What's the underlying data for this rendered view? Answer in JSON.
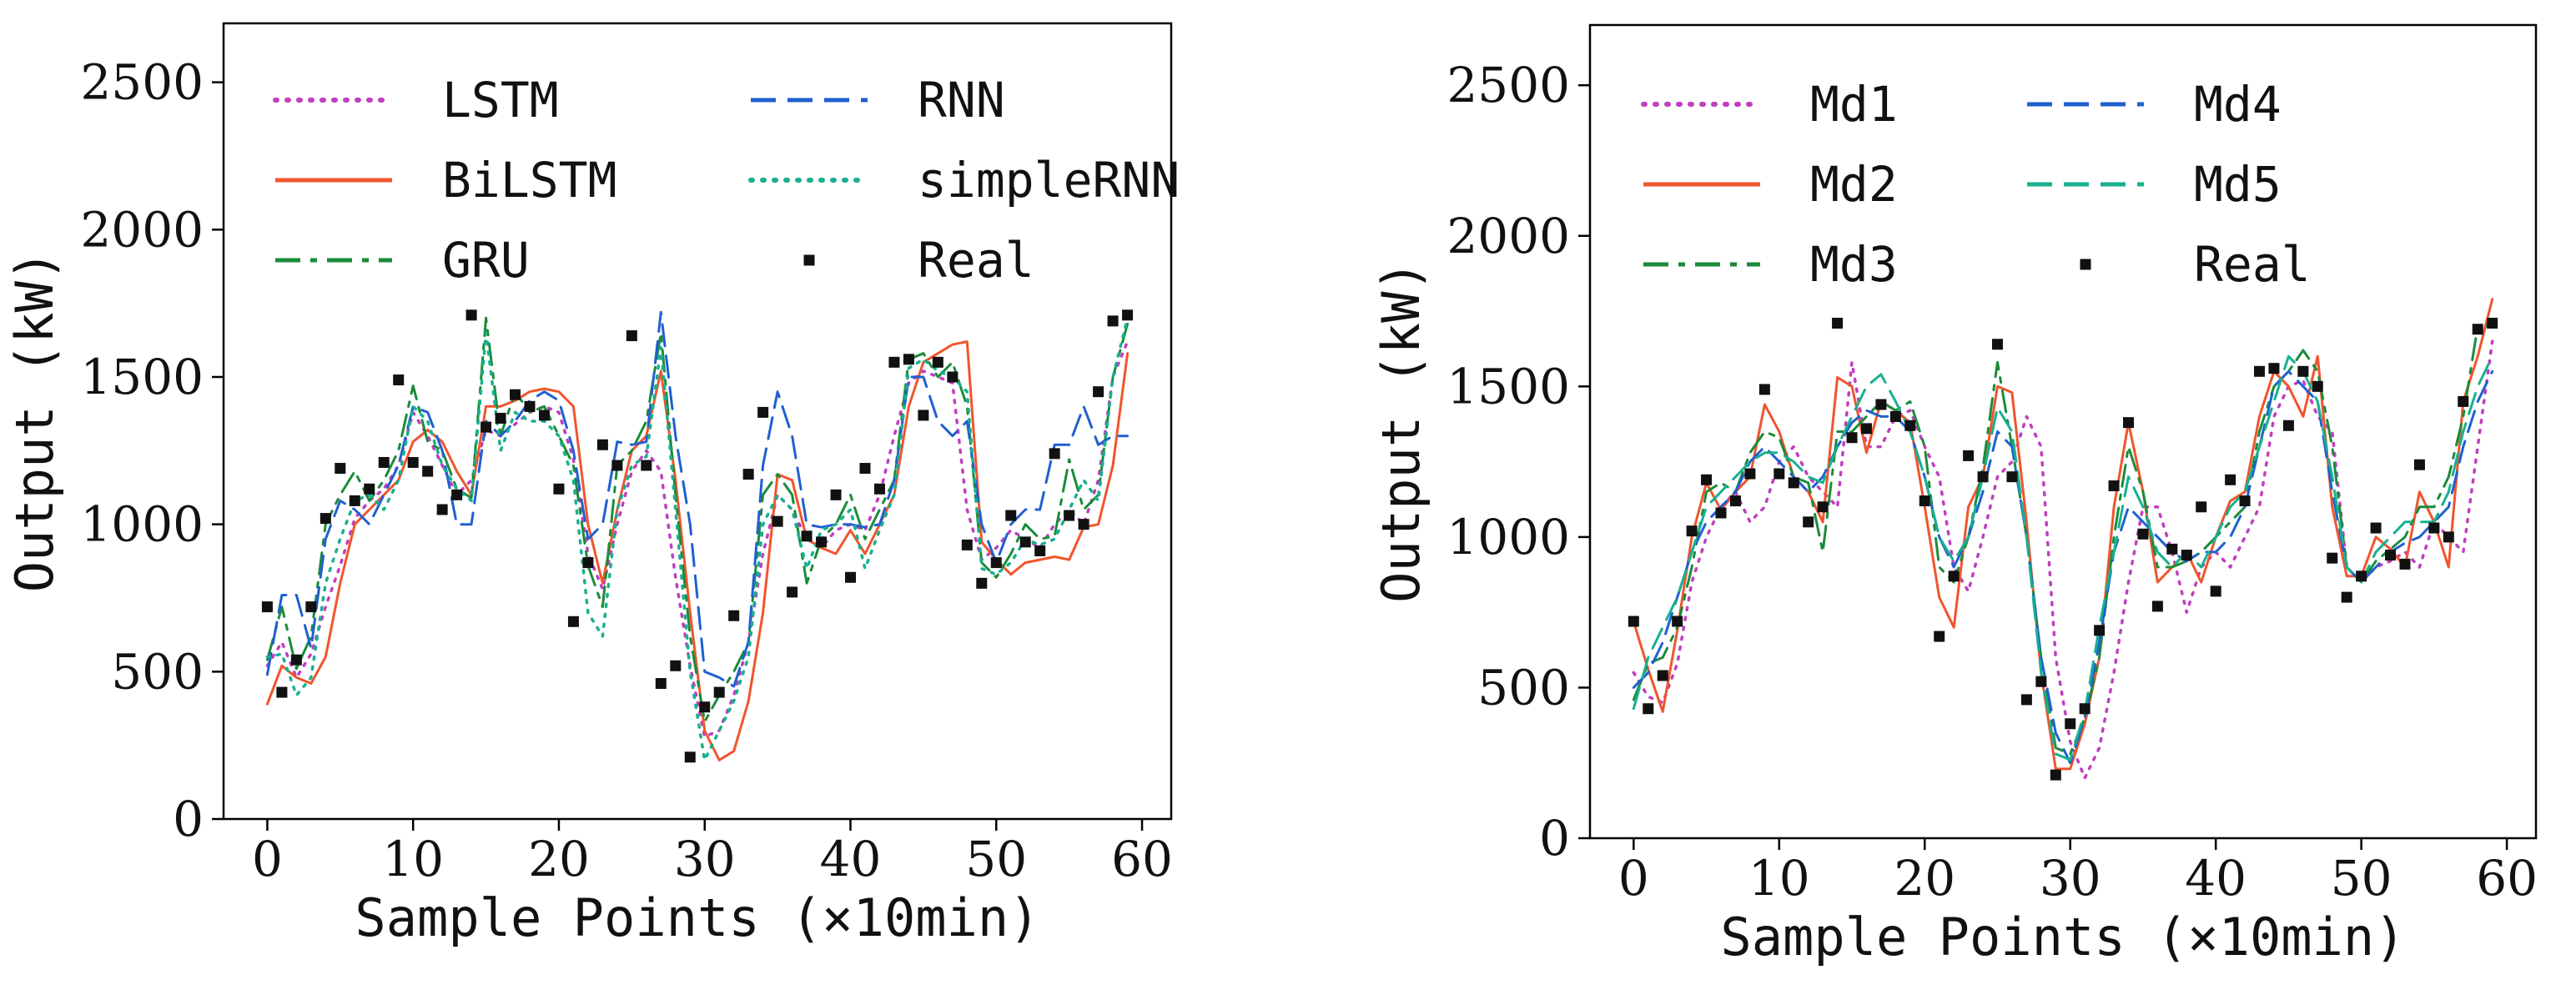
{
  "chart_data": [
    {
      "type": "line",
      "xlabel": "Sample Points (×10min)",
      "ylabel": "Output (kW)",
      "xlim": [
        -3,
        62
      ],
      "ylim": [
        0,
        2700
      ],
      "xticks": [
        0,
        10,
        20,
        30,
        40,
        50,
        60
      ],
      "yticks": [
        0,
        500,
        1000,
        1500,
        2000,
        2500
      ],
      "legend_position": "top",
      "legend_columns": 2,
      "grid": false,
      "series": [
        {
          "name": "LSTM",
          "color": "#bf3fbf",
          "style": "dotted",
          "values": [
            520,
            600,
            480,
            560,
            720,
            860,
            1020,
            1080,
            1120,
            1200,
            1380,
            1300,
            1200,
            1100,
            1150,
            1320,
            1300,
            1340,
            1380,
            1400,
            1380,
            1220,
            900,
            780,
            1000,
            1180,
            1250,
            1180,
            820,
            520,
            280,
            300,
            420,
            600,
            900,
            1100,
            1050,
            950,
            920,
            980,
            1000,
            980,
            1100,
            1300,
            1480,
            1520,
            1500,
            1480,
            1050,
            880,
            920,
            980,
            950,
            920,
            1000,
            1050,
            1000,
            1150,
            1500,
            1620
          ]
        },
        {
          "name": "BiLSTM",
          "color": "#f0552d",
          "style": "solid",
          "values": [
            390,
            520,
            480,
            460,
            550,
            800,
            1000,
            1050,
            1100,
            1150,
            1280,
            1320,
            1280,
            1180,
            1100,
            1400,
            1400,
            1420,
            1450,
            1460,
            1450,
            1400,
            1000,
            800,
            1050,
            1250,
            1300,
            1520,
            1150,
            700,
            300,
            200,
            230,
            400,
            700,
            1170,
            1150,
            950,
            920,
            900,
            980,
            900,
            1000,
            1100,
            1400,
            1550,
            1580,
            1610,
            1620,
            940,
            880,
            830,
            870,
            880,
            890,
            880,
            990,
            1000,
            1200,
            1580
          ]
        },
        {
          "name": "GRU",
          "color": "#1a8c3a",
          "style": "dashdot",
          "values": [
            540,
            720,
            510,
            620,
            1000,
            1100,
            1180,
            1080,
            1150,
            1250,
            1470,
            1280,
            1250,
            1120,
            1090,
            1700,
            1300,
            1450,
            1380,
            1400,
            1300,
            1200,
            860,
            720,
            1200,
            1250,
            1350,
            1650,
            1100,
            620,
            330,
            420,
            500,
            600,
            1100,
            1170,
            1100,
            800,
            950,
            1000,
            1100,
            950,
            1050,
            1150,
            1560,
            1580,
            1500,
            1550,
            1400,
            870,
            820,
            900,
            1000,
            950,
            960,
            1220,
            1050,
            1100,
            1500,
            1680
          ]
        },
        {
          "name": "RNN",
          "color": "#2060d0",
          "style": "dashed",
          "values": [
            490,
            760,
            760,
            580,
            950,
            1080,
            1050,
            1000,
            1100,
            1200,
            1400,
            1380,
            1250,
            1000,
            1000,
            1350,
            1300,
            1350,
            1420,
            1450,
            1420,
            1250,
            950,
            1000,
            1280,
            1270,
            1280,
            1720,
            1300,
            1000,
            500,
            480,
            450,
            600,
            1200,
            1450,
            1300,
            1000,
            990,
            1000,
            1000,
            990,
            1000,
            1150,
            1500,
            1500,
            1350,
            1300,
            1350,
            1000,
            870,
            1000,
            1050,
            1050,
            1270,
            1270,
            1400,
            1270,
            1300,
            1300
          ]
        },
        {
          "name": "simpleRNN",
          "color": "#18b090",
          "style": "dotted",
          "values": [
            550,
            560,
            420,
            480,
            800,
            950,
            1080,
            1100,
            1050,
            1150,
            1400,
            1350,
            1200,
            1120,
            1080,
            1650,
            1250,
            1380,
            1350,
            1350,
            1300,
            1150,
            700,
            620,
            1050,
            1200,
            1230,
            1600,
            1050,
            500,
            200,
            300,
            400,
            550,
            1000,
            1100,
            1050,
            850,
            980,
            1000,
            1050,
            850,
            980,
            1100,
            1530,
            1560,
            1520,
            1500,
            1450,
            850,
            830,
            870,
            950,
            930,
            950,
            1050,
            1150,
            1080,
            1500,
            1700
          ]
        },
        {
          "name": "Real",
          "color": "#111111",
          "style": "markers",
          "values": [
            720,
            430,
            540,
            720,
            1020,
            1190,
            1080,
            1120,
            1210,
            1490,
            1210,
            1180,
            1050,
            1100,
            1710,
            1330,
            1360,
            1440,
            1400,
            1370,
            1120,
            670,
            870,
            1270,
            1200,
            1640,
            1200,
            460,
            520,
            210,
            380,
            430,
            690,
            1170,
            1380,
            1010,
            770,
            960,
            940,
            1100,
            820,
            1190,
            1120,
            1550,
            1560,
            1370,
            1550,
            1500,
            930,
            800,
            870,
            1030,
            940,
            910,
            1240,
            1030,
            1000,
            1450,
            1690,
            1710
          ]
        }
      ]
    },
    {
      "type": "line",
      "xlabel": "Sample Points (×10min)",
      "ylabel": "Output (kW)",
      "xlim": [
        -3,
        62
      ],
      "ylim": [
        0,
        2700
      ],
      "xticks": [
        0,
        10,
        20,
        30,
        40,
        50,
        60
      ],
      "yticks": [
        0,
        500,
        1000,
        1500,
        2000,
        2500
      ],
      "legend_position": "top",
      "legend_columns": 2,
      "grid": false,
      "series": [
        {
          "name": "Md1",
          "color": "#bf3fbf",
          "style": "dotted",
          "values": [
            550,
            470,
            450,
            580,
            850,
            1000,
            1100,
            1150,
            1050,
            1100,
            1250,
            1300,
            1200,
            1150,
            1100,
            1580,
            1300,
            1300,
            1400,
            1420,
            1300,
            1200,
            900,
            820,
            1000,
            1200,
            1250,
            1400,
            1300,
            600,
            320,
            200,
            300,
            550,
            850,
            1100,
            1100,
            950,
            750,
            900,
            950,
            900,
            1000,
            1100,
            1400,
            1500,
            1520,
            1400,
            1350,
            900,
            850,
            900,
            920,
            950,
            900,
            1050,
            1000,
            950,
            1300,
            1650
          ]
        },
        {
          "name": "Md2",
          "color": "#f0552d",
          "style": "solid",
          "values": [
            720,
            560,
            420,
            690,
            1000,
            1180,
            1090,
            1150,
            1200,
            1440,
            1350,
            1200,
            1150,
            1050,
            1530,
            1500,
            1280,
            1450,
            1420,
            1380,
            1100,
            800,
            700,
            1100,
            1200,
            1500,
            1480,
            1050,
            550,
            230,
            230,
            380,
            600,
            1100,
            1380,
            1150,
            850,
            900,
            950,
            850,
            1000,
            1120,
            1150,
            1400,
            1550,
            1500,
            1400,
            1600,
            1100,
            870,
            870,
            1000,
            960,
            900,
            1150,
            1050,
            900,
            1450,
            1600,
            1790
          ]
        },
        {
          "name": "Md3",
          "color": "#1a8c3a",
          "style": "dashdot",
          "values": [
            460,
            580,
            600,
            700,
            900,
            1150,
            1180,
            1150,
            1280,
            1350,
            1330,
            1200,
            1180,
            950,
            1350,
            1350,
            1400,
            1450,
            1420,
            1450,
            1300,
            900,
            850,
            1000,
            1230,
            1580,
            1300,
            1000,
            600,
            300,
            280,
            400,
            600,
            1000,
            1300,
            1150,
            900,
            900,
            920,
            950,
            1000,
            1050,
            1100,
            1350,
            1500,
            1550,
            1620,
            1550,
            1300,
            900,
            850,
            920,
            960,
            1000,
            1100,
            1100,
            1200,
            1400,
            1700,
            1700
          ]
        },
        {
          "name": "Md4",
          "color": "#2060d0",
          "style": "dashed",
          "values": [
            500,
            550,
            650,
            800,
            950,
            1050,
            1100,
            1150,
            1250,
            1300,
            1250,
            1200,
            1150,
            1200,
            1300,
            1380,
            1420,
            1400,
            1400,
            1350,
            1200,
            1000,
            900,
            1000,
            1150,
            1350,
            1300,
            1000,
            600,
            350,
            250,
            400,
            650,
            950,
            1100,
            1050,
            1000,
            950,
            920,
            950,
            950,
            1000,
            1100,
            1300,
            1500,
            1550,
            1500,
            1450,
            1150,
            900,
            850,
            900,
            950,
            980,
            1000,
            1050,
            1100,
            1300,
            1450,
            1550
          ]
        },
        {
          "name": "Md5",
          "color": "#18b090",
          "style": "dashed",
          "values": [
            430,
            600,
            700,
            800,
            950,
            1100,
            1150,
            1200,
            1250,
            1280,
            1280,
            1250,
            1200,
            1180,
            1300,
            1400,
            1500,
            1540,
            1450,
            1350,
            1200,
            1000,
            920,
            1000,
            1200,
            1430,
            1350,
            1000,
            550,
            280,
            260,
            420,
            700,
            950,
            1200,
            1100,
            950,
            900,
            950,
            900,
            1000,
            1100,
            1150,
            1300,
            1450,
            1600,
            1550,
            1450,
            1200,
            900,
            850,
            950,
            1000,
            1050,
            1050,
            1050,
            1150,
            1350,
            1500,
            1600
          ]
        },
        {
          "name": "Real",
          "color": "#111111",
          "style": "markers",
          "values": [
            720,
            430,
            540,
            720,
            1020,
            1190,
            1080,
            1120,
            1210,
            1490,
            1210,
            1180,
            1050,
            1100,
            1710,
            1330,
            1360,
            1440,
            1400,
            1370,
            1120,
            670,
            870,
            1270,
            1200,
            1640,
            1200,
            460,
            520,
            210,
            380,
            430,
            690,
            1170,
            1380,
            1010,
            770,
            960,
            940,
            1100,
            820,
            1190,
            1120,
            1550,
            1560,
            1370,
            1550,
            1500,
            930,
            800,
            870,
            1030,
            940,
            910,
            1240,
            1030,
            1000,
            1450,
            1690,
            1710
          ]
        }
      ]
    }
  ]
}
